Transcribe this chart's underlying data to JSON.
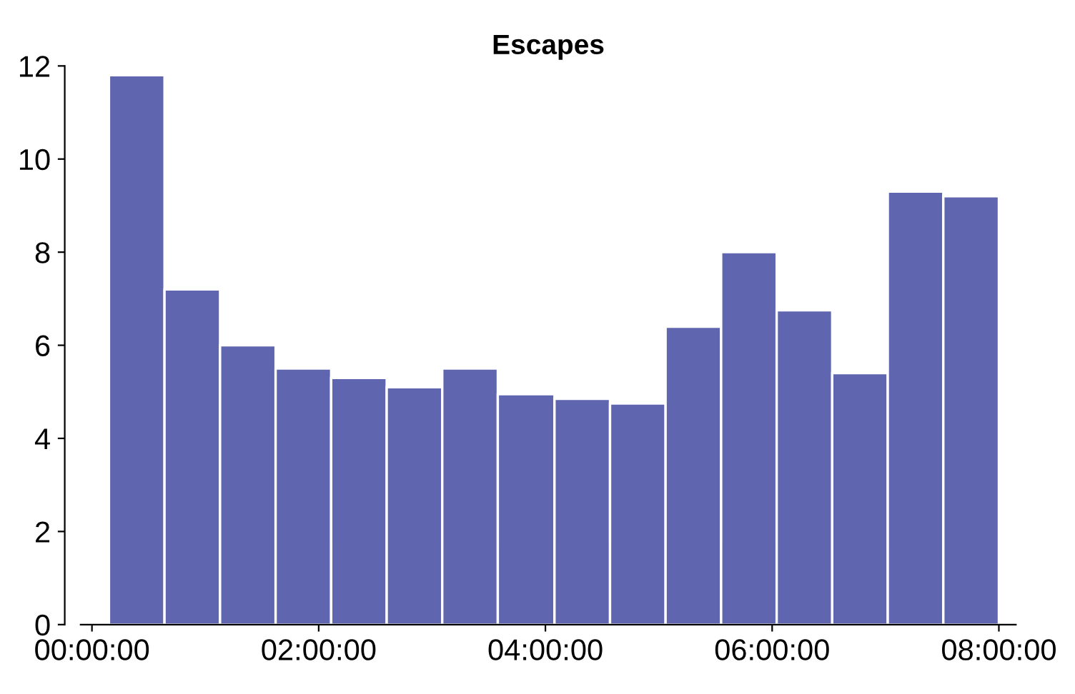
{
  "chart_data": {
    "type": "histogram",
    "title": "Escapes",
    "bins": [
      0.15,
      0.64,
      1.13,
      1.62,
      2.11,
      2.6,
      3.09,
      3.58,
      4.08,
      4.57,
      5.06,
      5.55,
      6.04,
      6.53,
      7.02,
      7.51,
      8.0
    ],
    "values": [
      11.8,
      7.2,
      6.0,
      5.5,
      5.3,
      5.1,
      5.5,
      4.95,
      4.85,
      4.75,
      6.4,
      8.0,
      6.75,
      5.4,
      9.3,
      9.2
    ],
    "color": "#5f65ae",
    "xlim": [
      -0.1,
      8.15
    ],
    "xticks": [
      {
        "value": 0,
        "label": "00:00:00"
      },
      {
        "value": 2,
        "label": "02:00:00"
      },
      {
        "value": 4,
        "label": "04:00:00"
      },
      {
        "value": 6,
        "label": "06:00:00"
      },
      {
        "value": 8,
        "label": "08:00:00"
      }
    ],
    "ylim": [
      0,
      12
    ],
    "yticks": [
      0,
      2,
      4,
      6,
      8,
      10,
      12
    ],
    "grid": false,
    "legend": false
  }
}
